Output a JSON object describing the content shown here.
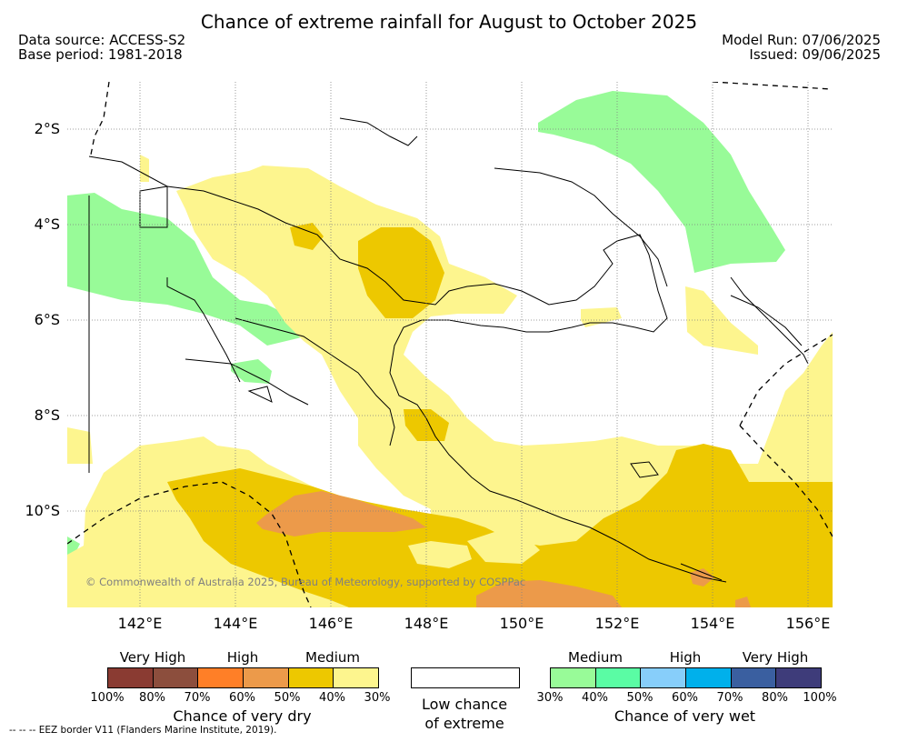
{
  "title": "Chance of extreme rainfall for August to October 2025",
  "data_source": "Data source: ACCESS-S2",
  "base_period": "Base period: 1981-2018",
  "model_run": "Model Run: 07/06/2025",
  "issued": "Issued: 09/06/2025",
  "map": {
    "lat_labels": [
      "2°S",
      "4°S",
      "6°S",
      "8°S",
      "10°S"
    ],
    "lon_labels": [
      "142°E",
      "144°E",
      "146°E",
      "148°E",
      "150°E",
      "152°E",
      "154°E",
      "156°E"
    ],
    "copyright": "© Commonwealth of Australia 2025, Bureau of Meteorology, supported by COSPPac",
    "colors": {
      "land_outline": "#000000",
      "grid": "#808080",
      "eez": "#000000"
    }
  },
  "legend": {
    "dry": {
      "categories": [
        "Very High",
        "High",
        "Medium"
      ],
      "colors": [
        "#8a3b32",
        "#8c4e3d",
        "#ff7f27",
        "#ec9a4a",
        "#edc800",
        "#fdf58e"
      ],
      "ticks": [
        "100%",
        "80%",
        "70%",
        "60%",
        "50%",
        "40%",
        "30%"
      ],
      "caption": "Chance of very dry"
    },
    "neutral": {
      "caption_line1": "Low chance",
      "caption_line2": "of extreme",
      "color": "#ffffff"
    },
    "wet": {
      "categories": [
        "Medium",
        "High",
        "Very High"
      ],
      "colors": [
        "#98fb98",
        "#5afca4",
        "#87cefa",
        "#00b0eb",
        "#3a5fa0",
        "#3e3c7a"
      ],
      "ticks": [
        "30%",
        "40%",
        "50%",
        "60%",
        "70%",
        "80%",
        "100%"
      ],
      "caption": "Chance of very wet"
    }
  },
  "eez_note": "--  --  -- EEZ border V11 (Flanders Marine Institute, 2019)."
}
